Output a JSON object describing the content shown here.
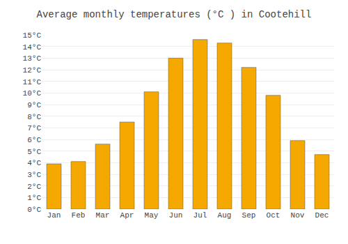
{
  "chart_data": {
    "type": "bar",
    "title": "Average monthly temperatures (°C ) in Cootehill",
    "categories": [
      "Jan",
      "Feb",
      "Mar",
      "Apr",
      "May",
      "Jun",
      "Jul",
      "Aug",
      "Sep",
      "Oct",
      "Nov",
      "Dec"
    ],
    "values": [
      3.9,
      4.1,
      5.6,
      7.5,
      10.1,
      13.0,
      14.6,
      14.3,
      12.2,
      9.8,
      5.9,
      4.7
    ],
    "color": "#F5A800",
    "ylim": [
      0,
      15
    ],
    "yticks": [
      {
        "value": 0,
        "label": "0°C"
      },
      {
        "value": 1,
        "label": "1°C"
      },
      {
        "value": 2,
        "label": "2°C"
      },
      {
        "value": 3,
        "label": "3°C"
      },
      {
        "value": 4,
        "label": "4°C"
      },
      {
        "value": 5,
        "label": "5°C"
      },
      {
        "value": 6,
        "label": "6°C"
      },
      {
        "value": 7,
        "label": "7°C"
      },
      {
        "value": 8,
        "label": "8°C"
      },
      {
        "value": 9,
        "label": "9°C"
      },
      {
        "value": 10,
        "label": "10°C"
      },
      {
        "value": 11,
        "label": "11°C"
      },
      {
        "value": 12,
        "label": "12°C"
      },
      {
        "value": 13,
        "label": "13°C"
      },
      {
        "value": 14,
        "label": "14°C"
      },
      {
        "value": 15,
        "label": "15°C"
      }
    ],
    "grid": true
  }
}
